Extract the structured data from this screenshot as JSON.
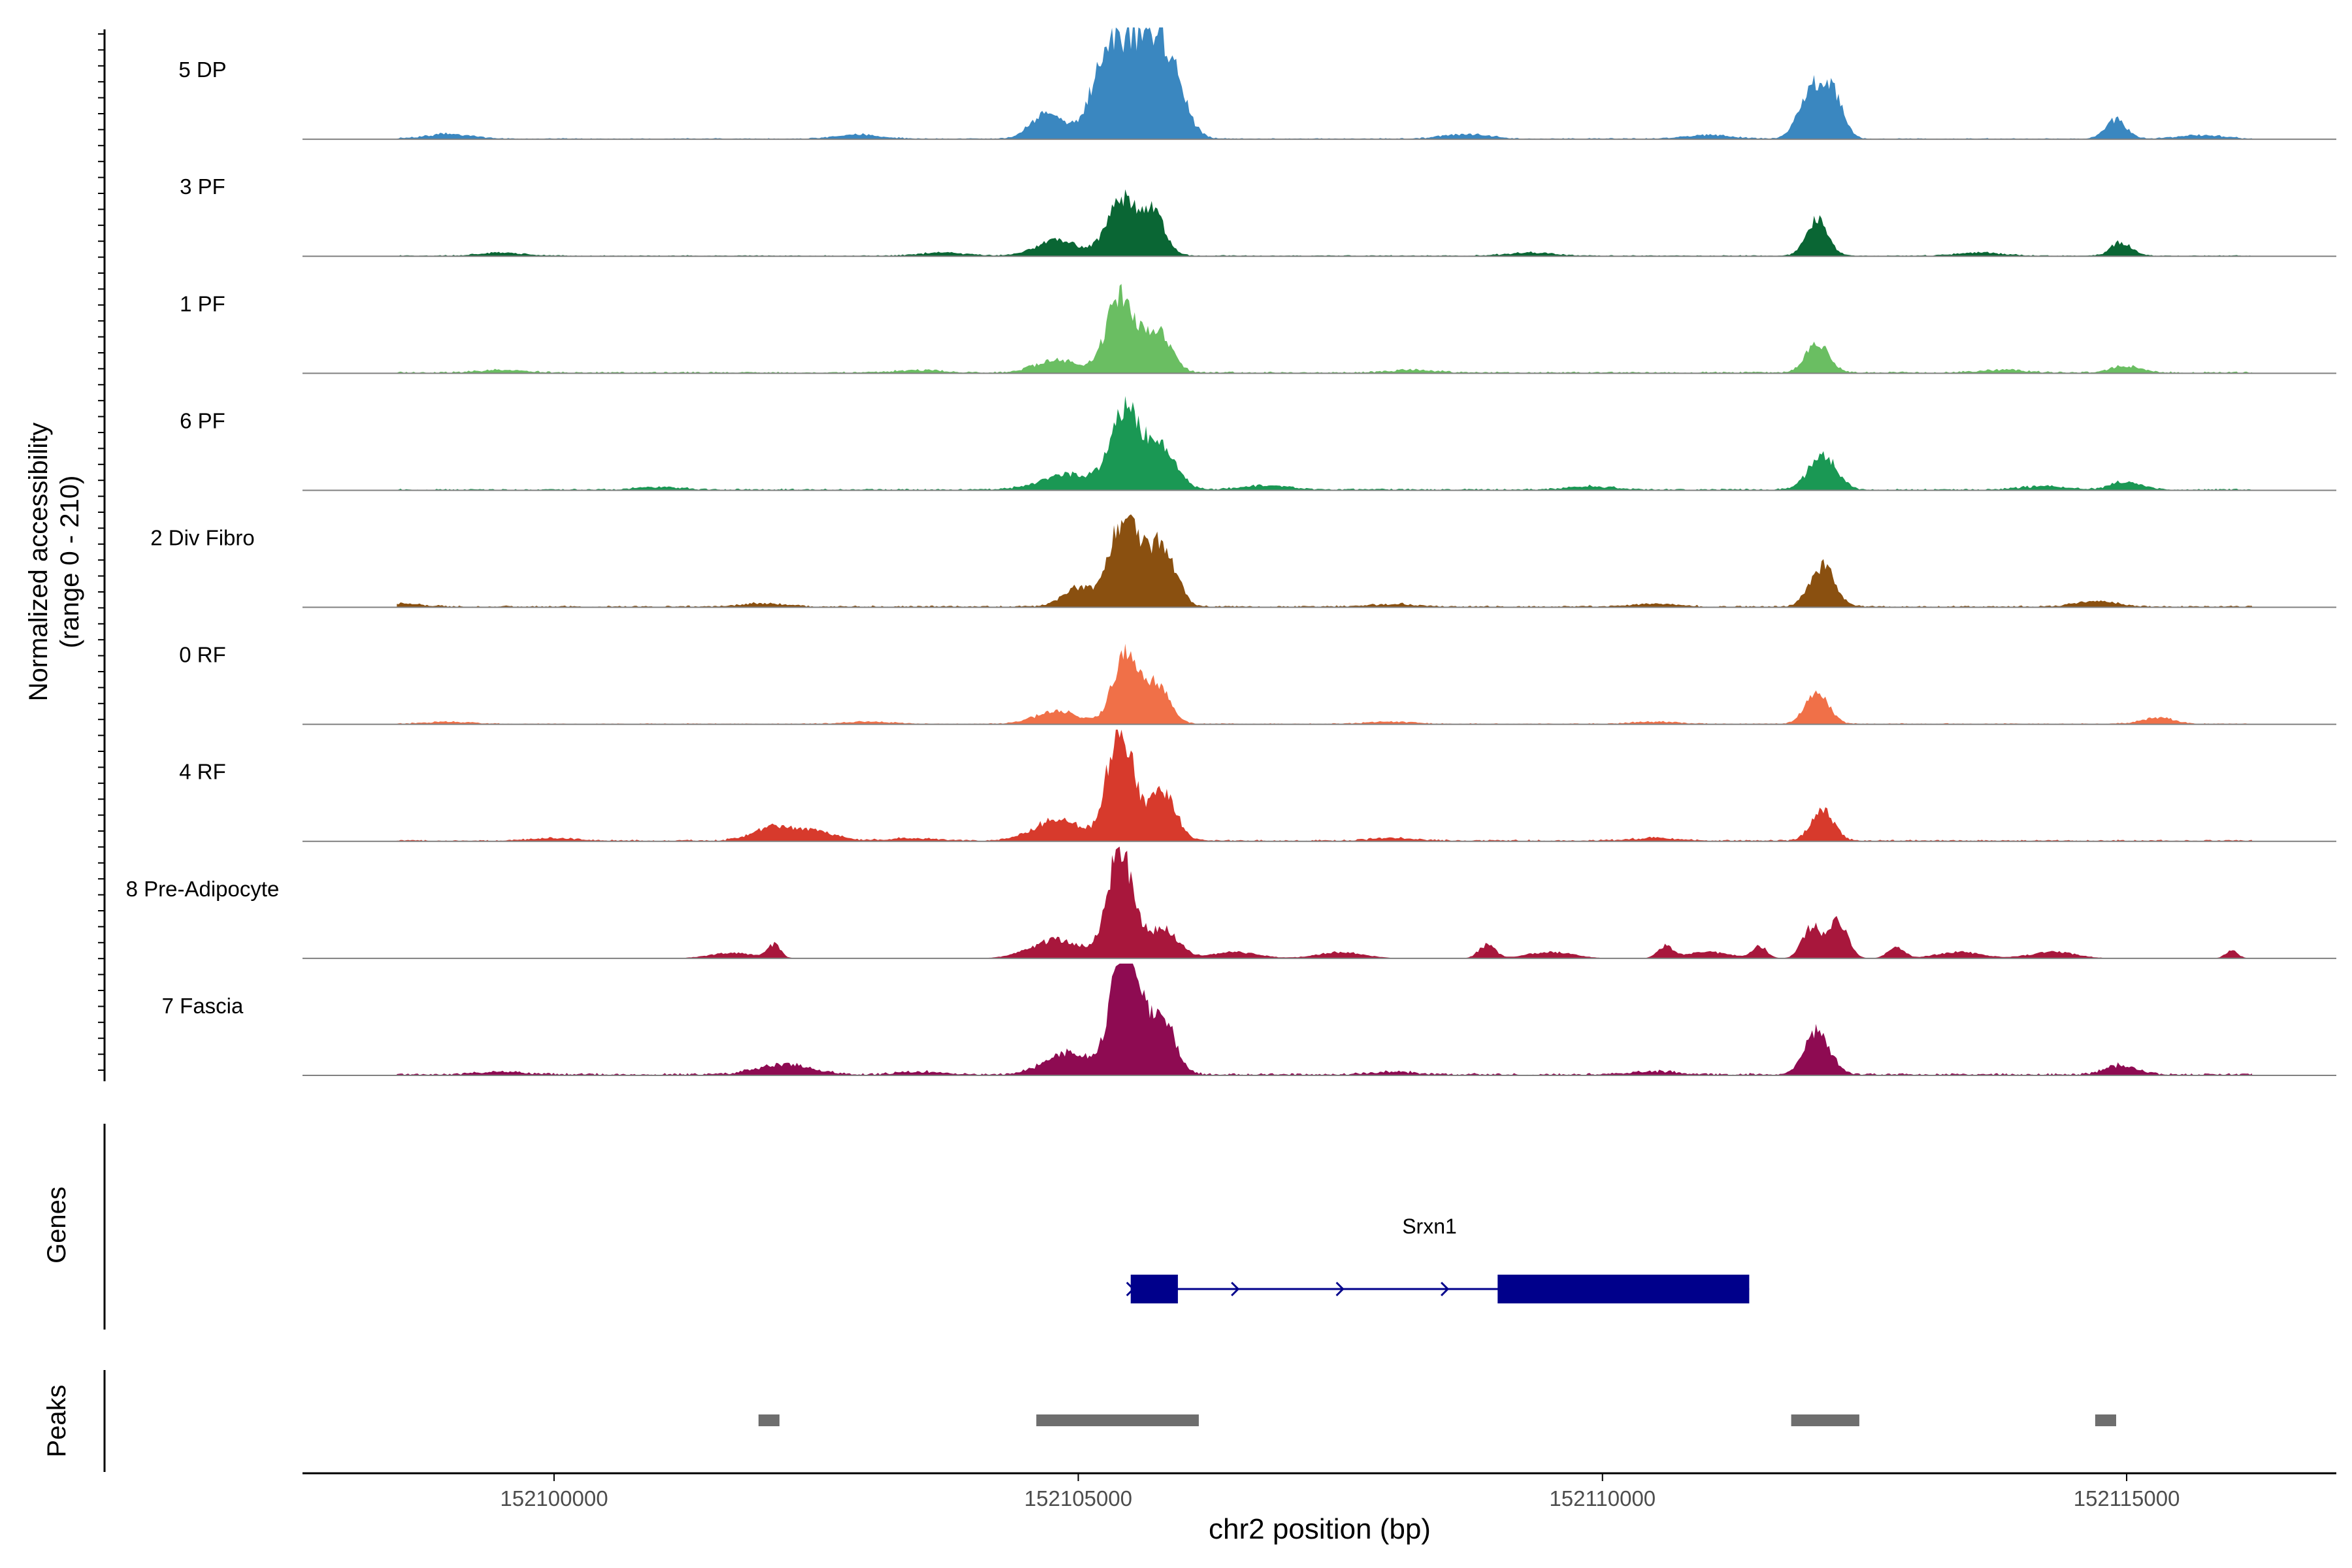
{
  "chart_data": {
    "type": "area",
    "title": "",
    "xlabel": "chr2 position (bp)",
    "xlim": [
      152097600,
      152117000
    ],
    "x_ticks": [
      152100000,
      152105000,
      152110000,
      152115000
    ],
    "x_tick_labels": [
      "152100000",
      "152105000",
      "152110000",
      "152115000"
    ],
    "coverage": {
      "ylabel_line1": "Normalized accessibility",
      "ylabel_line2": "(range 0 - 210)",
      "ylim": [
        0,
        210
      ],
      "tracks": [
        {
          "name": "5 DP",
          "color": "#3A87C0",
          "peaks": [
            [
              152104700,
              50,
              150
            ],
            [
              152105250,
              95,
              150
            ],
            [
              152105550,
              170,
              220
            ],
            [
              152105850,
              110,
              150
            ],
            [
              152112000,
              90,
              120
            ],
            [
              152112200,
              75,
              100
            ],
            [
              152114900,
              35,
              100
            ]
          ],
          "noise": [
            [
              152099000,
              9
            ],
            [
              152102900,
              8
            ],
            [
              152108700,
              9
            ],
            [
              152111000,
              7
            ],
            [
              152115700,
              7
            ]
          ],
          "background": 2
        },
        {
          "name": "3 PF",
          "color": "#0A6634",
          "peaks": [
            [
              152104800,
              30,
              200
            ],
            [
              152105400,
              105,
              130
            ],
            [
              152105700,
              85,
              120
            ],
            [
              152112050,
              70,
              100
            ],
            [
              152114950,
              25,
              100
            ]
          ],
          "noise": [
            [
              152099500,
              6
            ],
            [
              152103700,
              6
            ],
            [
              152109300,
              6
            ],
            [
              152113600,
              6
            ]
          ],
          "background": 2
        },
        {
          "name": "1 PF",
          "color": "#6ABE62",
          "peaks": [
            [
              152104800,
              25,
              200
            ],
            [
              152105400,
              145,
              130
            ],
            [
              152105750,
              80,
              130
            ],
            [
              152112050,
              55,
              110
            ],
            [
              152115000,
              12,
              150
            ]
          ],
          "noise": [
            [
              152099500,
              5
            ],
            [
              152103500,
              5
            ],
            [
              152108200,
              5
            ],
            [
              152113800,
              5
            ]
          ],
          "background": 3
        },
        {
          "name": "6 PF",
          "color": "#1A9854",
          "peaks": [
            [
              152104900,
              30,
              250
            ],
            [
              152105450,
              150,
              140
            ],
            [
              152105800,
              80,
              140
            ],
            [
              152112100,
              65,
              130
            ],
            [
              152115000,
              15,
              150
            ]
          ],
          "noise": [
            [
              152101000,
              5
            ],
            [
              152106800,
              8
            ],
            [
              152109900,
              6
            ],
            [
              152114200,
              6
            ]
          ],
          "background": 3
        },
        {
          "name": "2 Div Fibro",
          "color": "#8A5010",
          "peaks": [
            [
              152105000,
              35,
              150
            ],
            [
              152105450,
              175,
              140
            ],
            [
              152105800,
              110,
              130
            ],
            [
              152112100,
              75,
              120
            ],
            [
              152114700,
              10,
              200
            ]
          ],
          "noise": [
            [
              152098500,
              6
            ],
            [
              152102000,
              6
            ],
            [
              152108000,
              5
            ],
            [
              152110500,
              6
            ]
          ],
          "background": 3
        },
        {
          "name": "0 RF",
          "color": "#F07048",
          "peaks": [
            [
              152104800,
              25,
              200
            ],
            [
              152105450,
              135,
              120
            ],
            [
              152105750,
              75,
              120
            ],
            [
              152112050,
              60,
              110
            ],
            [
              152115300,
              12,
              150
            ]
          ],
          "noise": [
            [
              152099000,
              4
            ],
            [
              152103000,
              4
            ],
            [
              152108000,
              4
            ],
            [
              152110500,
              4
            ]
          ],
          "background": 2
        },
        {
          "name": "4 RF",
          "color": "#D73A2C",
          "peaks": [
            [
              152102100,
              25,
              200
            ],
            [
              152102500,
              15,
              200
            ],
            [
              152104800,
              40,
              220
            ],
            [
              152105400,
              215,
              120
            ],
            [
              152105800,
              90,
              130
            ],
            [
              152112100,
              55,
              110
            ]
          ],
          "noise": [
            [
              152100000,
              5
            ],
            [
              152103400,
              5
            ],
            [
              152108000,
              5
            ],
            [
              152110500,
              5
            ]
          ],
          "background": 3
        },
        {
          "name": "8 Pre-Adipocyte",
          "color": "#A8173C",
          "peaks": [
            [
              152102100,
              25,
              60
            ],
            [
              152104800,
              35,
              250
            ],
            [
              152105400,
              200,
              120
            ],
            [
              152105800,
              55,
              150
            ],
            [
              152108900,
              25,
              80
            ],
            [
              152110600,
              22,
              70
            ],
            [
              152111500,
              22,
              70
            ],
            [
              152112000,
              60,
              90
            ],
            [
              152112250,
              70,
              90
            ],
            [
              152112800,
              20,
              80
            ],
            [
              152116000,
              15,
              60
            ]
          ],
          "noise": [
            [
              152101700,
              10
            ],
            [
              152106500,
              12
            ],
            [
              152107500,
              12
            ],
            [
              152109500,
              12
            ],
            [
              152111000,
              12
            ],
            [
              152113400,
              12
            ],
            [
              152114300,
              12
            ]
          ],
          "background": 0
        },
        {
          "name": "7 Fascia",
          "color": "#8E0B52",
          "peaks": [
            [
              152102200,
              20,
              250
            ],
            [
              152104900,
              40,
              220
            ],
            [
              152105450,
              255,
              130
            ],
            [
              152105800,
              110,
              120
            ],
            [
              152112050,
              80,
              120
            ],
            [
              152114950,
              18,
              150
            ]
          ],
          "noise": [
            [
              152099500,
              5
            ],
            [
              152103500,
              5
            ],
            [
              152108000,
              5
            ],
            [
              152110500,
              6
            ]
          ],
          "background": 4
        }
      ]
    },
    "genes": {
      "panel_label": "Genes",
      "color": "#00008B",
      "items": [
        {
          "name": "Srxn1",
          "start": 152105500,
          "end": 152111400,
          "strand": "+",
          "exons": [
            [
              152105500,
              152105950
            ],
            [
              152109000,
              152111400
            ]
          ]
        }
      ]
    },
    "peaks": {
      "panel_label": "Peaks",
      "color": "#6E6E6E",
      "regions": [
        [
          152101950,
          152102150
        ],
        [
          152104600,
          152106150
        ],
        [
          152111800,
          152112450
        ],
        [
          152114700,
          152114900
        ]
      ]
    }
  }
}
